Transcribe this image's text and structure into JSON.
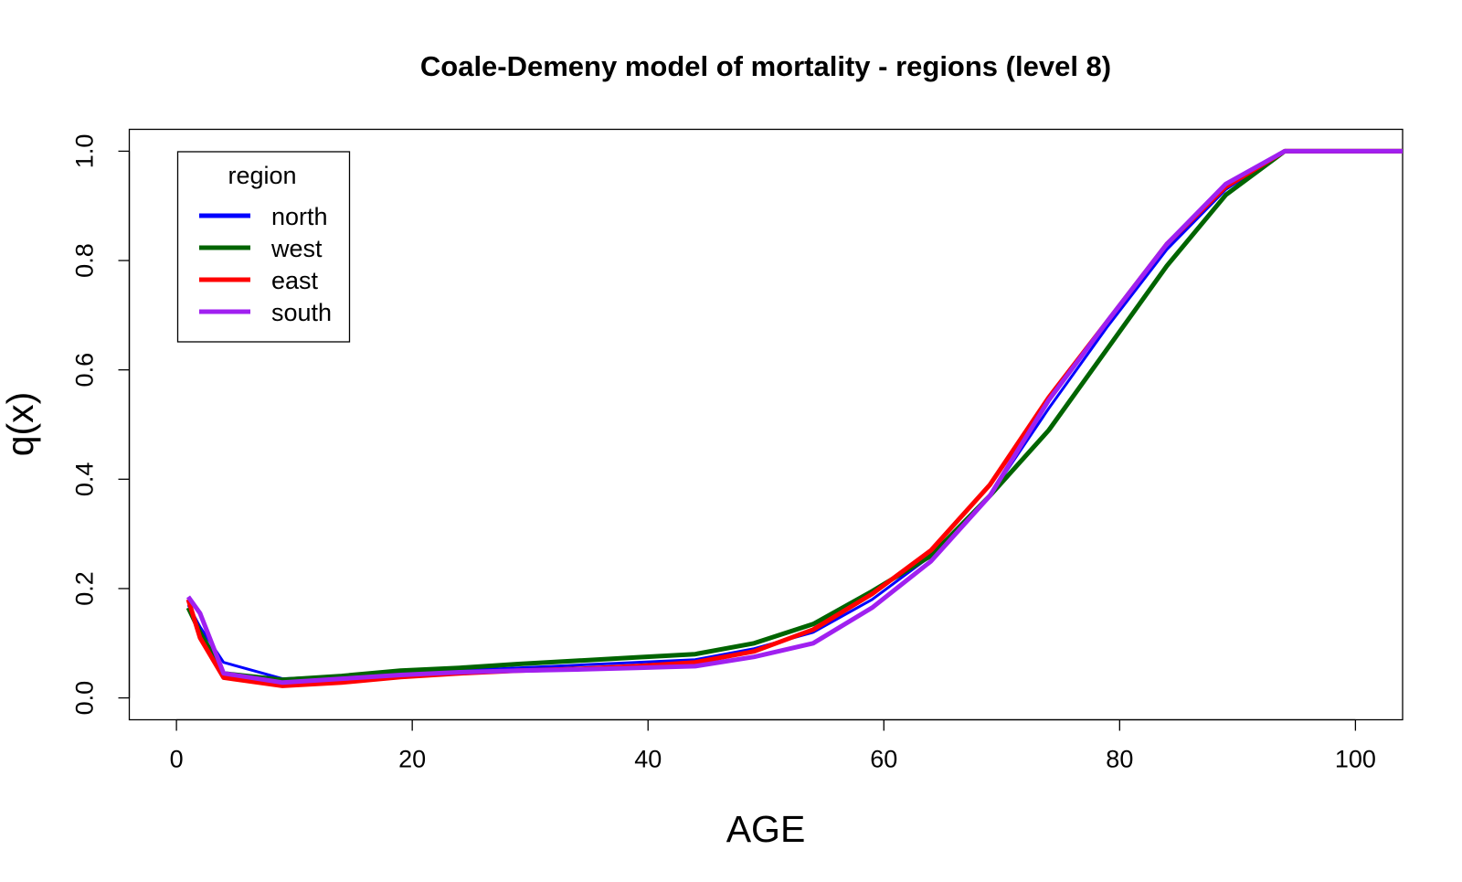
{
  "chart_data": {
    "type": "line",
    "title": "Coale-Demeny model of mortality - regions (level 8)",
    "xlabel": "AGE",
    "ylabel": "q(x)",
    "xlim": [
      -4,
      104
    ],
    "ylim": [
      -0.04,
      1.04
    ],
    "xticks": [
      0,
      20,
      40,
      60,
      80,
      100
    ],
    "yticks": [
      0.0,
      0.2,
      0.4,
      0.6,
      0.8,
      1.0
    ],
    "ytick_labels": [
      "0.0",
      "0.2",
      "0.4",
      "0.6",
      "0.8",
      "1.0"
    ],
    "grid": false,
    "legend": {
      "title": "region",
      "position": "top-left"
    },
    "x": [
      1,
      2,
      4,
      9,
      14,
      19,
      24,
      29,
      34,
      39,
      44,
      49,
      54,
      59,
      64,
      69,
      74,
      79,
      84,
      89,
      94,
      104
    ],
    "series": [
      {
        "name": "north",
        "color": "#0000ff",
        "values": [
          0.17,
          0.13,
          0.065,
          0.035,
          0.04,
          0.045,
          0.05,
          0.055,
          0.06,
          0.065,
          0.07,
          0.09,
          0.12,
          0.18,
          0.26,
          0.37,
          0.53,
          0.68,
          0.82,
          0.93,
          1.0,
          1.0
        ]
      },
      {
        "name": "west",
        "color": "#006400",
        "values": [
          0.165,
          0.12,
          0.045,
          0.033,
          0.04,
          0.05,
          0.055,
          0.062,
          0.068,
          0.074,
          0.08,
          0.1,
          0.135,
          0.195,
          0.26,
          0.37,
          0.49,
          0.64,
          0.79,
          0.92,
          1.0,
          1.0
        ]
      },
      {
        "name": "east",
        "color": "#ff0000",
        "values": [
          0.18,
          0.11,
          0.037,
          0.022,
          0.028,
          0.038,
          0.045,
          0.05,
          0.053,
          0.058,
          0.065,
          0.085,
          0.125,
          0.19,
          0.27,
          0.39,
          0.55,
          0.69,
          0.83,
          0.935,
          1.0,
          1.0
        ]
      },
      {
        "name": "south",
        "color": "#a020f0",
        "values": [
          0.185,
          0.155,
          0.045,
          0.028,
          0.035,
          0.042,
          0.047,
          0.05,
          0.052,
          0.055,
          0.058,
          0.075,
          0.1,
          0.165,
          0.25,
          0.37,
          0.545,
          0.69,
          0.83,
          0.94,
          1.0,
          1.0
        ]
      }
    ]
  }
}
